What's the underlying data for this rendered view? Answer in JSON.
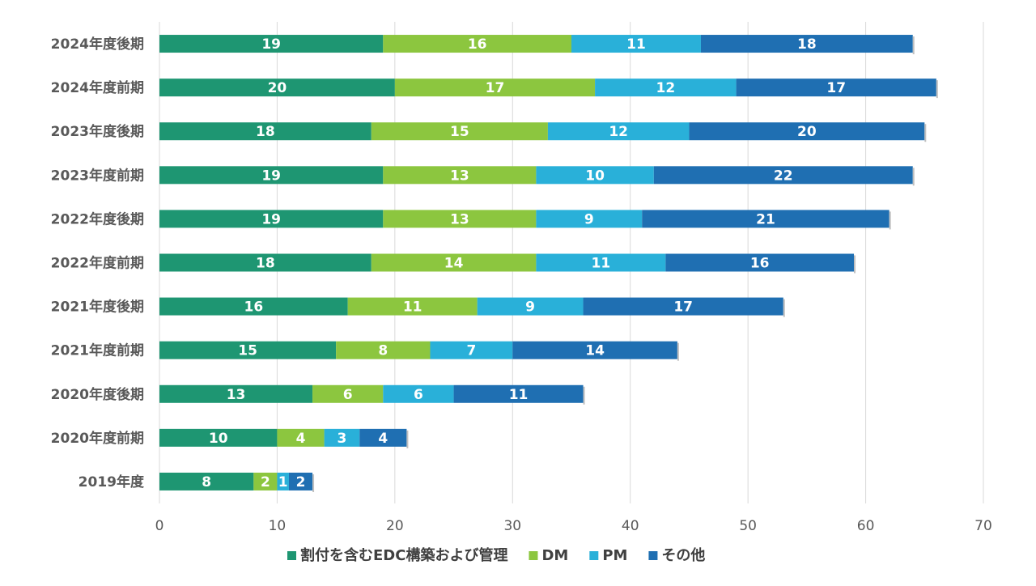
{
  "chart_data": {
    "type": "bar",
    "orientation": "horizontal",
    "stacked": true,
    "categories": [
      "2024年度後期",
      "2024年度前期",
      "2023年度後期",
      "2023年度前期",
      "2022年度後期",
      "2022年度前期",
      "2021年度後期",
      "2021年度前期",
      "2020年度後期",
      "2020年度前期",
      "2019年度"
    ],
    "series": [
      {
        "name": "割付を含むEDC構築および管理",
        "color": "#1e9672",
        "values": [
          19,
          20,
          18,
          19,
          19,
          18,
          16,
          15,
          13,
          10,
          8
        ]
      },
      {
        "name": "DM",
        "color": "#8cc63f",
        "values": [
          16,
          17,
          15,
          13,
          13,
          14,
          11,
          8,
          6,
          4,
          2
        ]
      },
      {
        "name": "PM",
        "color": "#29b0d9",
        "values": [
          11,
          12,
          12,
          10,
          9,
          11,
          9,
          7,
          6,
          3,
          1
        ]
      },
      {
        "name": "その他",
        "color": "#1f6fb2",
        "values": [
          18,
          17,
          20,
          22,
          21,
          16,
          17,
          14,
          11,
          4,
          2
        ]
      }
    ],
    "x_ticks": [
      0,
      10,
      20,
      30,
      40,
      50,
      60,
      70
    ],
    "xlim": [
      0,
      70
    ],
    "grid": true,
    "legend_position": "bottom",
    "data_labels": true,
    "title": "",
    "xlabel": "",
    "ylabel": ""
  }
}
